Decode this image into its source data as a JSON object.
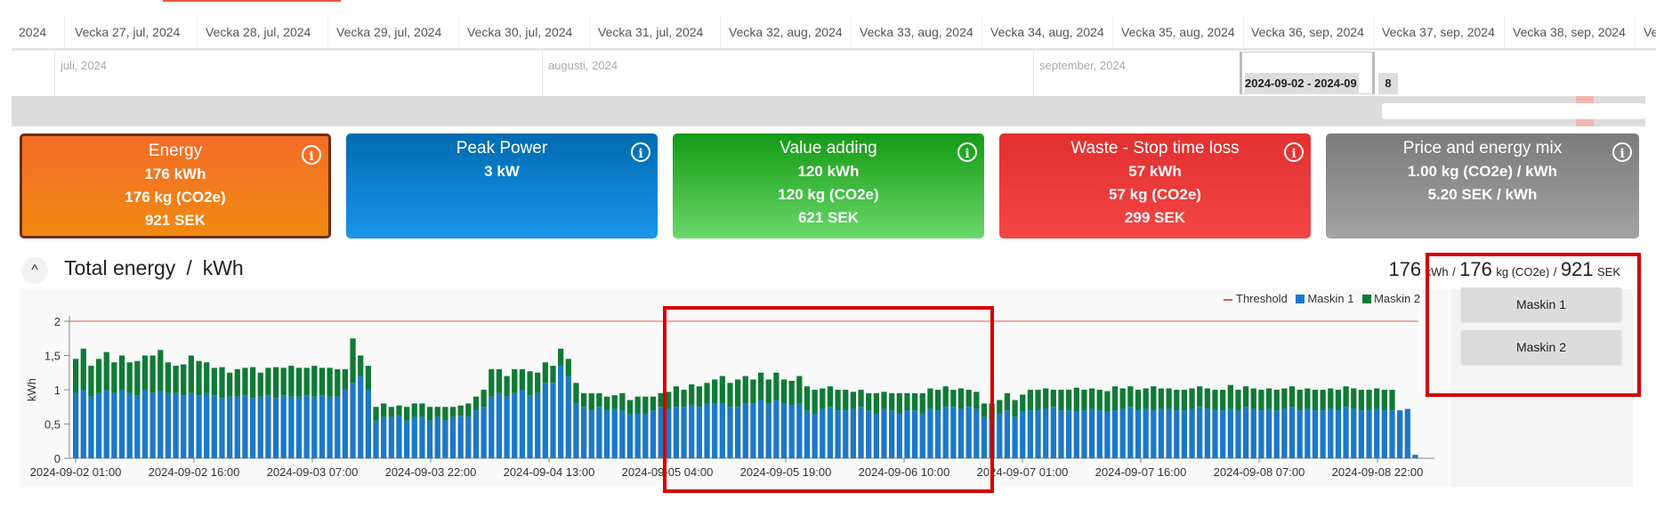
{
  "timeline": {
    "weeks": [
      "2024",
      "Vecka 27, jul, 2024",
      "Vecka 28, jul, 2024",
      "Vecka 29, jul, 2024",
      "Vecka 30, jul, 2024",
      "Vecka 31, jul, 2024",
      "Vecka 32, aug, 2024",
      "Vecka 33, aug, 2024",
      "Vecka 34, aug, 2024",
      "Vecka 35, aug, 2024",
      "Vecka 36, sep, 2024",
      "Vecka 37, sep, 2024",
      "Vecka 38, sep, 2024",
      "Ve"
    ],
    "months": [
      "juli, 2024",
      "augusti, 2024",
      "september, 2024"
    ],
    "selection_label": "2024-09-02 - 2024-09",
    "selection_label_end": "8"
  },
  "cards": [
    {
      "title": "Energy",
      "lines": [
        "176 kWh",
        "176 kg (CO2e)",
        "921 SEK"
      ],
      "color": "#f28a10"
    },
    {
      "title": "Peak Power",
      "lines": [
        "3 kW"
      ],
      "color": "#1a95ea"
    },
    {
      "title": "Value adding",
      "lines": [
        "120 kWh",
        "120 kg (CO2e)",
        "621 SEK"
      ],
      "color": "#139a15"
    },
    {
      "title": "Waste - Stop time loss",
      "lines": [
        "57 kWh",
        "57 kg (CO2e)",
        "299 SEK"
      ],
      "color": "#e1302f"
    },
    {
      "title": "Price and energy mix",
      "lines": [
        "1.00 kg (CO2e) / kWh",
        "5.20 SEK / kWh"
      ],
      "color": "#7b7b7b"
    }
  ],
  "info_icon": "i",
  "section": {
    "collapse_icon": "^",
    "title": "Total energy",
    "separator": "/",
    "unit": "kWh"
  },
  "totals": {
    "energy": "176",
    "energy_unit": "kWh",
    "co2": "176",
    "co2_unit": "kg (CO2e)",
    "cost": "921",
    "cost_unit": "SEK",
    "sep": "/"
  },
  "side_buttons": [
    "Maskin 1",
    "Maskin 2"
  ],
  "chart_data": {
    "type": "bar",
    "stacked": true,
    "ylabel": "kWh",
    "ylim": [
      0,
      2
    ],
    "yticks": [
      "0",
      "0,5",
      "1",
      "1,5",
      "2"
    ],
    "threshold": 2,
    "xticks": [
      "2024-09-02 01:00",
      "2024-09-02 16:00",
      "2024-09-03 07:00",
      "2024-09-03 22:00",
      "2024-09-04 13:00",
      "2024-09-05 04:00",
      "2024-09-05 19:00",
      "2024-09-06 10:00",
      "2024-09-07 01:00",
      "2024-09-07 16:00",
      "2024-09-08 07:00",
      "2024-09-08 22:00"
    ],
    "legend": [
      "Threshold",
      "Maskin 1",
      "Maskin 2"
    ],
    "colors": {
      "threshold": "#e15b4f",
      "maskin1": "#1b78c8",
      "maskin2": "#0f7a35"
    },
    "series": [
      {
        "name": "Maskin 1",
        "values": [
          0.95,
          1.0,
          0.9,
          0.95,
          1.0,
          0.95,
          1.0,
          0.95,
          0.92,
          1.0,
          0.95,
          0.98,
          0.95,
          0.95,
          0.92,
          0.95,
          0.92,
          0.95,
          0.92,
          0.88,
          0.9,
          0.9,
          0.92,
          0.88,
          0.9,
          0.92,
          0.88,
          0.92,
          0.9,
          0.9,
          0.92,
          0.9,
          0.92,
          0.9,
          0.9,
          1.0,
          1.1,
          1.2,
          1.0,
          0.55,
          0.6,
          0.6,
          0.62,
          0.55,
          0.6,
          0.6,
          0.55,
          0.6,
          0.55,
          0.6,
          0.62,
          0.6,
          0.7,
          0.75,
          0.9,
          0.95,
          0.9,
          0.95,
          1.0,
          0.92,
          0.95,
          1.1,
          1.1,
          1.35,
          1.2,
          0.8,
          0.75,
          0.7,
          0.75,
          0.7,
          0.72,
          0.7,
          0.65,
          0.65,
          0.65,
          0.7,
          0.75,
          0.72,
          0.75,
          0.75,
          0.78,
          0.75,
          0.8,
          0.8,
          0.8,
          0.75,
          0.75,
          0.8,
          0.8,
          0.85,
          0.8,
          0.85,
          0.8,
          0.78,
          0.8,
          0.7,
          0.65,
          0.72,
          0.75,
          0.7,
          0.7,
          0.72,
          0.75,
          0.7,
          0.65,
          0.72,
          0.7,
          0.65,
          0.7,
          0.7,
          0.65,
          0.72,
          0.7,
          0.75,
          0.75,
          0.72,
          0.75,
          0.72,
          0.6,
          0.55,
          0.65,
          0.7,
          0.6,
          0.68,
          0.7,
          0.7,
          0.72,
          0.75,
          0.7,
          0.7,
          0.68,
          0.7,
          0.72,
          0.7,
          0.68,
          0.7,
          0.72,
          0.75,
          0.7,
          0.72,
          0.7,
          0.72,
          0.72,
          0.7,
          0.7,
          0.72,
          0.75,
          0.72,
          0.7,
          0.7,
          0.72,
          0.7,
          0.75,
          0.72,
          0.7,
          0.72,
          0.7,
          0.72,
          0.75,
          0.7,
          0.72,
          0.7,
          0.7,
          0.72,
          0.7,
          0.75,
          0.72,
          0.7,
          0.7,
          0.72,
          0.7,
          0.7,
          0.7,
          0.72,
          0.05
        ]
      },
      {
        "name": "Maskin 2",
        "values": [
          0.5,
          0.6,
          0.45,
          0.5,
          0.55,
          0.45,
          0.5,
          0.45,
          0.5,
          0.5,
          0.55,
          0.6,
          0.45,
          0.4,
          0.45,
          0.55,
          0.5,
          0.45,
          0.4,
          0.45,
          0.35,
          0.4,
          0.4,
          0.45,
          0.35,
          0.4,
          0.45,
          0.4,
          0.45,
          0.42,
          0.4,
          0.45,
          0.4,
          0.42,
          0.4,
          0.3,
          0.65,
          0.3,
          0.35,
          0.2,
          0.2,
          0.15,
          0.15,
          0.2,
          0.2,
          0.2,
          0.2,
          0.15,
          0.2,
          0.15,
          0.15,
          0.2,
          0.2,
          0.25,
          0.4,
          0.35,
          0.3,
          0.35,
          0.3,
          0.35,
          0.3,
          0.3,
          0.25,
          0.25,
          0.25,
          0.3,
          0.2,
          0.25,
          0.2,
          0.2,
          0.2,
          0.25,
          0.2,
          0.25,
          0.25,
          0.2,
          0.2,
          0.25,
          0.3,
          0.25,
          0.3,
          0.3,
          0.3,
          0.35,
          0.4,
          0.35,
          0.4,
          0.4,
          0.35,
          0.4,
          0.35,
          0.4,
          0.35,
          0.35,
          0.4,
          0.35,
          0.35,
          0.3,
          0.3,
          0.3,
          0.3,
          0.25,
          0.25,
          0.25,
          0.3,
          0.25,
          0.25,
          0.3,
          0.25,
          0.25,
          0.3,
          0.3,
          0.3,
          0.3,
          0.25,
          0.3,
          0.25,
          0.25,
          0.2,
          0.25,
          0.2,
          0.25,
          0.25,
          0.25,
          0.3,
          0.3,
          0.3,
          0.25,
          0.3,
          0.3,
          0.35,
          0.3,
          0.3,
          0.3,
          0.3,
          0.35,
          0.3,
          0.3,
          0.3,
          0.3,
          0.35,
          0.3,
          0.3,
          0.3,
          0.3,
          0.3,
          0.3,
          0.3,
          0.3,
          0.3,
          0.35,
          0.3,
          0.3,
          0.3,
          0.3,
          0.3,
          0.3,
          0.3,
          0.3,
          0.3,
          0.3,
          0.3,
          0.3,
          0.3,
          0.3,
          0.3,
          0.3,
          0.3,
          0.3,
          0.3,
          0.3,
          0.3,
          0.0
        ]
      }
    ]
  }
}
